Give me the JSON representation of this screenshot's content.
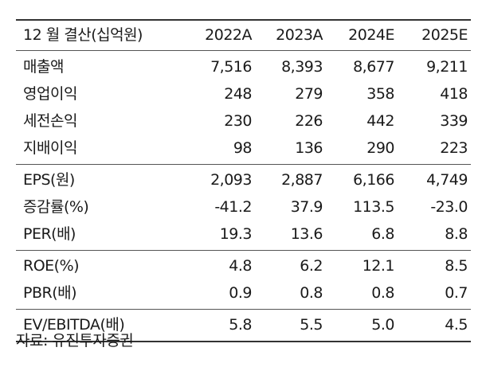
{
  "header": {
    "label": "12 월 결산(십억원)",
    "years": [
      "2022A",
      "2023A",
      "2024E",
      "2025E"
    ]
  },
  "groups": [
    {
      "rows": [
        {
          "label": "매출액",
          "values": [
            "7,516",
            "8,393",
            "8,677",
            "9,211"
          ]
        },
        {
          "label": "영업이익",
          "values": [
            "248",
            "279",
            "358",
            "418"
          ]
        },
        {
          "label": "세전손익",
          "values": [
            "230",
            "226",
            "442",
            "339"
          ]
        },
        {
          "label": "지배이익",
          "values": [
            "98",
            "136",
            "290",
            "223"
          ]
        }
      ]
    },
    {
      "rows": [
        {
          "label": "EPS(원)",
          "values": [
            "2,093",
            "2,887",
            "6,166",
            "4,749"
          ]
        },
        {
          "label": "증감률(%)",
          "values": [
            "-41.2",
            "37.9",
            "113.5",
            "-23.0"
          ]
        },
        {
          "label": "PER(배)",
          "values": [
            "19.3",
            "13.6",
            "6.8",
            "8.8"
          ]
        }
      ]
    },
    {
      "rows": [
        {
          "label": "ROE(%)",
          "values": [
            "4.8",
            "6.2",
            "12.1",
            "8.5"
          ]
        },
        {
          "label": "PBR(배)",
          "values": [
            "0.9",
            "0.8",
            "0.8",
            "0.7"
          ]
        }
      ]
    },
    {
      "rows": [
        {
          "label": "EV/EBITDA(배)",
          "values": [
            "5.8",
            "5.5",
            "5.0",
            "4.5"
          ]
        }
      ]
    }
  ],
  "source": "자료: 유진투자증권"
}
